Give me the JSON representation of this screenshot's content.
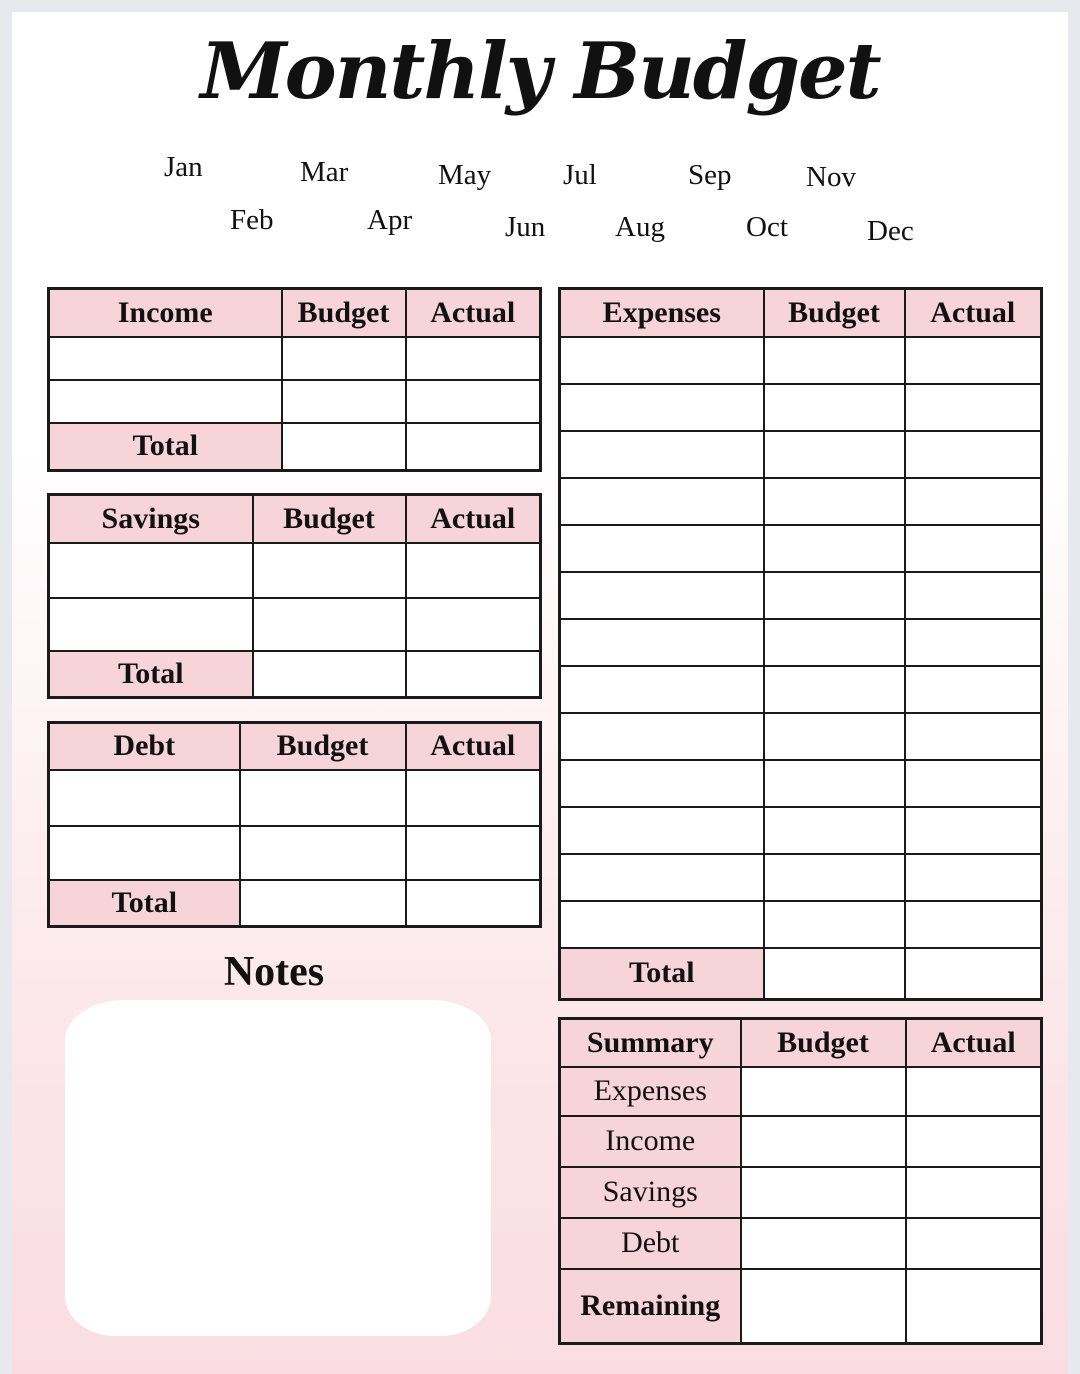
{
  "title": "Monthly Budget",
  "months": [
    "Jan",
    "Feb",
    "Mar",
    "Apr",
    "May",
    "Jun",
    "Jul",
    "Aug",
    "Sep",
    "Oct",
    "Nov",
    "Dec"
  ],
  "colors": {
    "header_pink": "#f7d3da",
    "border": "#1a1a1a"
  },
  "tables": {
    "income": {
      "headers": [
        "Income",
        "Budget",
        "Actual"
      ],
      "rows": [
        "",
        ""
      ],
      "total": "Total"
    },
    "savings": {
      "headers": [
        "Savings",
        "Budget",
        "Actual"
      ],
      "rows": [
        "",
        ""
      ],
      "total": "Total"
    },
    "debt": {
      "headers": [
        "Debt",
        "Budget",
        "Actual"
      ],
      "rows": [
        "",
        ""
      ],
      "total": "Total"
    },
    "expenses": {
      "headers": [
        "Expenses",
        "Budget",
        "Actual"
      ],
      "rows": [
        "",
        "",
        "",
        "",
        "",
        "",
        "",
        "",
        "",
        "",
        "",
        "",
        ""
      ],
      "total": "Total"
    },
    "summary": {
      "headers": [
        "Summary",
        "Budget",
        "Actual"
      ],
      "rows": [
        "Expenses",
        "Income",
        "Savings",
        "Debt"
      ],
      "total": "Remaining"
    }
  },
  "notes": {
    "title": "Notes"
  }
}
